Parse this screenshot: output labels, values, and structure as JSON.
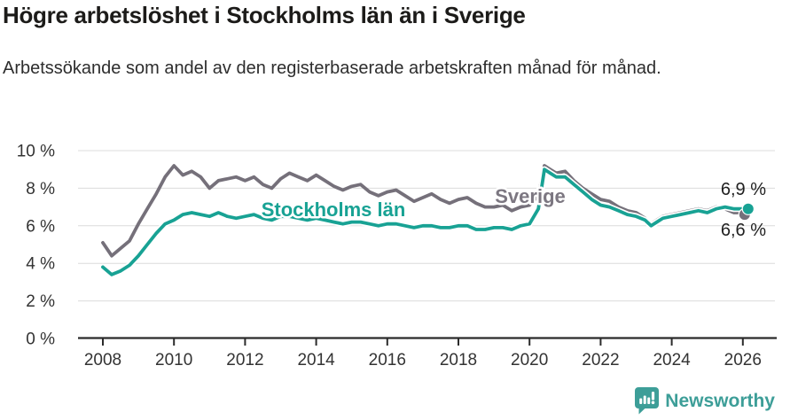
{
  "chart_data": {
    "type": "line",
    "title": "Högre arbetslöshet i Stockholms län än i Sverige",
    "subtitle": "Arbetssökande som andel av den registerbaserade arbetskraften månad för månad.",
    "x_unit": "decimal_year",
    "xlim": [
      2007.3,
      2027.1
    ],
    "ylim": [
      0,
      10
    ],
    "grid": "horizontal",
    "legend_position": "inline-labels",
    "x_ticks": [
      {
        "v": 2008,
        "label": "2008"
      },
      {
        "v": 2010,
        "label": "2010"
      },
      {
        "v": 2012,
        "label": "2012"
      },
      {
        "v": 2014,
        "label": "2014"
      },
      {
        "v": 2016,
        "label": "2016"
      },
      {
        "v": 2018,
        "label": "2018"
      },
      {
        "v": 2020,
        "label": "2020"
      },
      {
        "v": 2022,
        "label": "2022"
      },
      {
        "v": 2024,
        "label": "2024"
      },
      {
        "v": 2026,
        "label": "2026"
      }
    ],
    "y_ticks": [
      {
        "v": 0,
        "label": "0 %"
      },
      {
        "v": 2,
        "label": "2 %"
      },
      {
        "v": 4,
        "label": "4 %"
      },
      {
        "v": 6,
        "label": "6 %"
      },
      {
        "v": 8,
        "label": "8 %"
      },
      {
        "v": 10,
        "label": "10 %"
      }
    ],
    "x": [
      2008.0,
      2008.25,
      2008.5,
      2008.75,
      2009.0,
      2009.25,
      2009.5,
      2009.75,
      2010.0,
      2010.25,
      2010.5,
      2010.75,
      2011.0,
      2011.25,
      2011.5,
      2011.75,
      2012.0,
      2012.25,
      2012.5,
      2012.75,
      2013.0,
      2013.25,
      2013.5,
      2013.75,
      2014.0,
      2014.25,
      2014.5,
      2014.75,
      2015.0,
      2015.25,
      2015.5,
      2015.75,
      2016.0,
      2016.25,
      2016.5,
      2016.75,
      2017.0,
      2017.25,
      2017.5,
      2017.75,
      2018.0,
      2018.25,
      2018.5,
      2018.75,
      2019.0,
      2019.25,
      2019.5,
      2019.75,
      2020.0,
      2020.25,
      2020.42,
      2020.58,
      2020.75,
      2021.0,
      2021.25,
      2021.5,
      2021.75,
      2022.0,
      2022.25,
      2022.5,
      2022.75,
      2023.0,
      2023.25,
      2023.42,
      2023.58,
      2023.75,
      2024.0,
      2024.25,
      2024.5,
      2024.75,
      2025.0,
      2025.25,
      2025.5,
      2025.75,
      2026.0,
      2026.1
    ],
    "series": [
      {
        "name": "Sverige",
        "color": "#75707a",
        "label_color": "#7c7781",
        "values": [
          5.1,
          4.4,
          4.8,
          5.2,
          6.1,
          6.9,
          7.7,
          8.6,
          9.2,
          8.7,
          8.9,
          8.6,
          8.0,
          8.4,
          8.5,
          8.6,
          8.4,
          8.6,
          8.2,
          8.0,
          8.5,
          8.8,
          8.6,
          8.4,
          8.7,
          8.4,
          8.1,
          7.9,
          8.1,
          8.2,
          7.8,
          7.6,
          7.8,
          7.9,
          7.6,
          7.3,
          7.5,
          7.7,
          7.4,
          7.2,
          7.4,
          7.5,
          7.2,
          7.0,
          7.0,
          7.1,
          6.8,
          7.0,
          7.1,
          7.6,
          9.2,
          9.0,
          8.8,
          8.9,
          8.4,
          8.0,
          7.7,
          7.4,
          7.3,
          7.0,
          6.8,
          6.7,
          6.4,
          6.1,
          6.3,
          6.5,
          6.6,
          6.7,
          6.8,
          6.9,
          6.8,
          7.0,
          6.9,
          6.7,
          6.7,
          6.6
        ]
      },
      {
        "name": "Stockholms län",
        "color": "#18a294",
        "label_color": "#18a294",
        "values": [
          3.8,
          3.4,
          3.6,
          3.9,
          4.4,
          5.0,
          5.6,
          6.1,
          6.3,
          6.6,
          6.7,
          6.6,
          6.5,
          6.7,
          6.5,
          6.4,
          6.5,
          6.6,
          6.4,
          6.3,
          6.5,
          6.5,
          6.4,
          6.3,
          6.4,
          6.3,
          6.2,
          6.1,
          6.2,
          6.2,
          6.1,
          6.0,
          6.1,
          6.1,
          6.0,
          5.9,
          6.0,
          6.0,
          5.9,
          5.9,
          6.0,
          6.0,
          5.8,
          5.8,
          5.9,
          5.9,
          5.8,
          6.0,
          6.1,
          6.9,
          9.0,
          8.8,
          8.6,
          8.6,
          8.2,
          7.8,
          7.4,
          7.1,
          7.0,
          6.8,
          6.6,
          6.5,
          6.3,
          6.0,
          6.2,
          6.4,
          6.5,
          6.6,
          6.7,
          6.8,
          6.7,
          6.9,
          7.0,
          6.9,
          6.9,
          6.9
        ]
      }
    ],
    "end_labels": [
      {
        "series": "Stockholms län",
        "text": "6,9 %"
      },
      {
        "series": "Sverige",
        "text": "6,6 %"
      }
    ]
  },
  "footer": {
    "brand": "Newsworthy",
    "brand_color": "#3d9e98"
  }
}
